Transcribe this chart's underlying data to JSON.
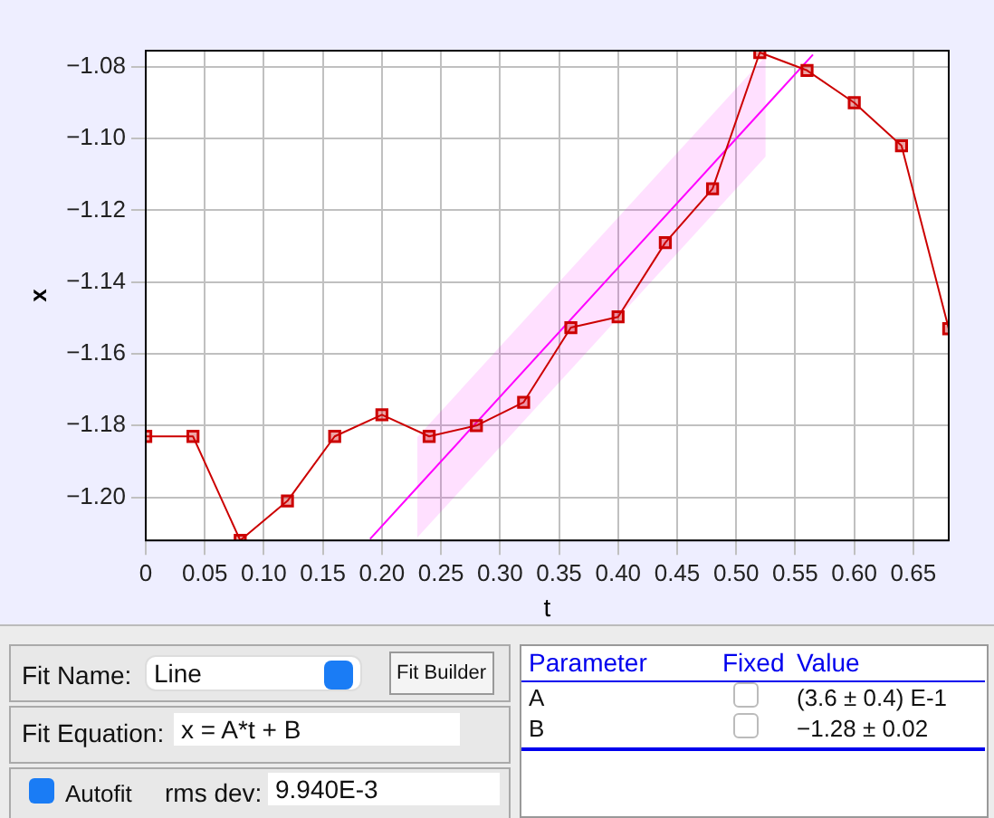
{
  "chart_data": {
    "type": "line",
    "xlabel": "t",
    "ylabel": "x",
    "xlim": [
      0,
      0.68
    ],
    "ylim": [
      -1.212,
      -1.0755
    ],
    "xticks": [
      0,
      {
        "value": 0.05,
        "label": "0.05"
      },
      {
        "value": 0.1,
        "label": "0.10"
      },
      {
        "value": 0.15,
        "label": "0.15"
      },
      {
        "value": 0.2,
        "label": "0.20"
      },
      {
        "value": 0.25,
        "label": "0.25"
      },
      {
        "value": 0.3,
        "label": "0.30"
      },
      {
        "value": 0.35,
        "label": "0.35"
      },
      {
        "value": 0.4,
        "label": "0.40"
      },
      {
        "value": 0.45,
        "label": "0.45"
      },
      {
        "value": 0.5,
        "label": "0.50"
      },
      {
        "value": 0.55,
        "label": "0.55"
      },
      {
        "value": 0.6,
        "label": "0.60"
      },
      {
        "value": 0.65,
        "label": "0.65"
      }
    ],
    "yticks": [
      {
        "value": -1.2,
        "label": "−1.20"
      },
      {
        "value": -1.18,
        "label": "−1.18"
      },
      {
        "value": -1.16,
        "label": "−1.16"
      },
      {
        "value": -1.14,
        "label": "−1.14"
      },
      {
        "value": -1.12,
        "label": "−1.12"
      },
      {
        "value": -1.1,
        "label": "−1.10"
      },
      {
        "value": -1.08,
        "label": "−1.08"
      }
    ],
    "grid": true,
    "legend": false,
    "marker": "square",
    "line_style": "solid",
    "x": [
      0,
      0.04,
      0.08,
      0.12,
      0.16,
      0.2,
      0.24,
      0.28,
      0.32,
      0.36,
      0.4,
      0.44,
      0.48,
      0.52,
      0.56,
      0.6,
      0.64,
      0.68
    ],
    "series": [
      {
        "color": "#cc0000",
        "values": [
          -1.183,
          -1.183,
          -1.212,
          -1.201,
          -1.183,
          -1.177,
          -1.183,
          -1.18,
          -1.1735,
          -1.1527,
          -1.1497,
          -1.129,
          -1.114,
          -1.076,
          -1.081,
          -1.09,
          -1.102,
          -1.153
        ]
      },
      {
        "type": "line",
        "marker": "none",
        "color": "#ff00ff",
        "x": [
          0.19,
          0.23,
          0.525,
          0.565
        ],
        "values": [
          -1.2116,
          -1.1972,
          -1.091,
          -1.0766
        ],
        "lower": [
          null,
          -1.2112,
          -1.105,
          null
        ],
        "upper": [
          null,
          -1.1832,
          -1.077,
          null
        ]
      }
    ],
    "annotations": [
      "Fit Name:",
      "Line",
      "Fit Builder",
      "Fit Equation:",
      "x = A*t + B",
      "Autofit",
      "rms dev:",
      "9.940E-3",
      "Parameter",
      "Fixed",
      "Value",
      "A",
      "(3.6 ± 0.4) E-1",
      "B",
      "−1.28 ± 0.02"
    ]
  }
}
